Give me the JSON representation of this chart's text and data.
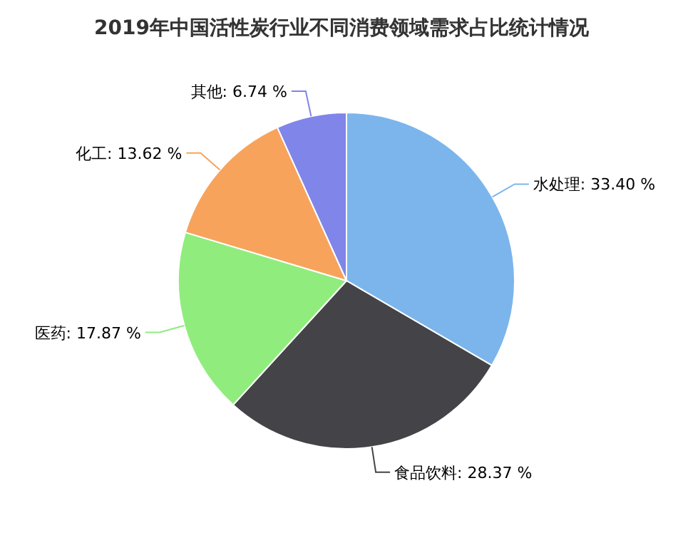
{
  "chart_data": {
    "type": "pie",
    "title": "2019年中国活性炭行业不同消费领域需求占比统计情况",
    "categories": [
      "水处理",
      "食品饮料",
      "医药",
      "化工",
      "其他"
    ],
    "values": [
      33.4,
      28.37,
      17.87,
      13.62,
      6.74
    ],
    "value_labels": [
      "33.40 %",
      "28.37 %",
      "17.87 %",
      "13.62 %",
      "6.74 %"
    ],
    "colors": [
      "#7cb5ec",
      "#434348",
      "#90ed7d",
      "#f7a35c",
      "#8085e9"
    ]
  }
}
